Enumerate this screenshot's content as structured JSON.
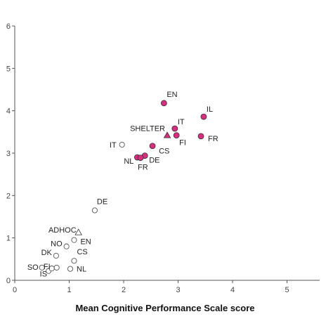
{
  "chart_data": {
    "type": "scatter",
    "title": "",
    "xlabel": "Mean Cognitive Performance Scale score",
    "ylabel": "",
    "xlim": [
      0,
      5.6
    ],
    "ylim": [
      0,
      6
    ],
    "xticks": [
      "0",
      "1",
      "2",
      "3",
      "4",
      "5"
    ],
    "yticks": [
      "0",
      "1",
      "2",
      "3",
      "4",
      "5",
      "6"
    ],
    "grid": false,
    "legend": "none",
    "colors": {
      "filled": "#d62f7e",
      "open_stroke": "#555555",
      "triangle_fill": "#d62f7e"
    },
    "points": [
      {
        "label": "EN",
        "x": 2.74,
        "y": 4.18,
        "marker": "circle-filled"
      },
      {
        "label": "IL",
        "x": 3.47,
        "y": 3.86,
        "marker": "circle-filled"
      },
      {
        "label": "IT",
        "x": 2.94,
        "y": 3.58,
        "marker": "circle-filled"
      },
      {
        "label": "SHELTER",
        "x": 2.8,
        "y": 3.42,
        "marker": "triangle-filled"
      },
      {
        "label": "FI",
        "x": 2.97,
        "y": 3.42,
        "marker": "circle-filled"
      },
      {
        "label": "FR",
        "x": 3.42,
        "y": 3.4,
        "marker": "circle-filled"
      },
      {
        "label": "CS",
        "x": 2.53,
        "y": 3.17,
        "marker": "circle-filled"
      },
      {
        "label": "NL",
        "x": 2.25,
        "y": 2.9,
        "marker": "circle-filled"
      },
      {
        "label": "DE",
        "x": 2.39,
        "y": 2.94,
        "marker": "circle-filled"
      },
      {
        "label": "FR",
        "x": 2.31,
        "y": 2.89,
        "marker": "circle-filled"
      },
      {
        "label": "IT",
        "x": 1.97,
        "y": 3.2,
        "marker": "circle-open"
      },
      {
        "label": "DE",
        "x": 1.47,
        "y": 1.65,
        "marker": "circle-open"
      },
      {
        "label": "ADHOC",
        "x": 1.17,
        "y": 1.13,
        "marker": "triangle-open"
      },
      {
        "label": "EN",
        "x": 1.09,
        "y": 0.95,
        "marker": "circle-open"
      },
      {
        "label": "NO",
        "x": 0.95,
        "y": 0.8,
        "marker": "circle-open"
      },
      {
        "label": "CS",
        "x": 1.09,
        "y": 0.46,
        "marker": "circle-open"
      },
      {
        "label": "DK",
        "x": 0.76,
        "y": 0.58,
        "marker": "circle-open"
      },
      {
        "label": "FI",
        "x": 0.77,
        "y": 0.3,
        "marker": "circle-open"
      },
      {
        "label": "NL",
        "x": 1.02,
        "y": 0.27,
        "marker": "circle-open"
      },
      {
        "label": "SO",
        "x": 0.5,
        "y": 0.3,
        "marker": "circle-open"
      },
      {
        "label": "IS",
        "x": 0.62,
        "y": 0.22,
        "marker": "circle-open"
      },
      {
        "label": "",
        "x": 0.68,
        "y": 0.28,
        "marker": "circle-open"
      }
    ]
  }
}
